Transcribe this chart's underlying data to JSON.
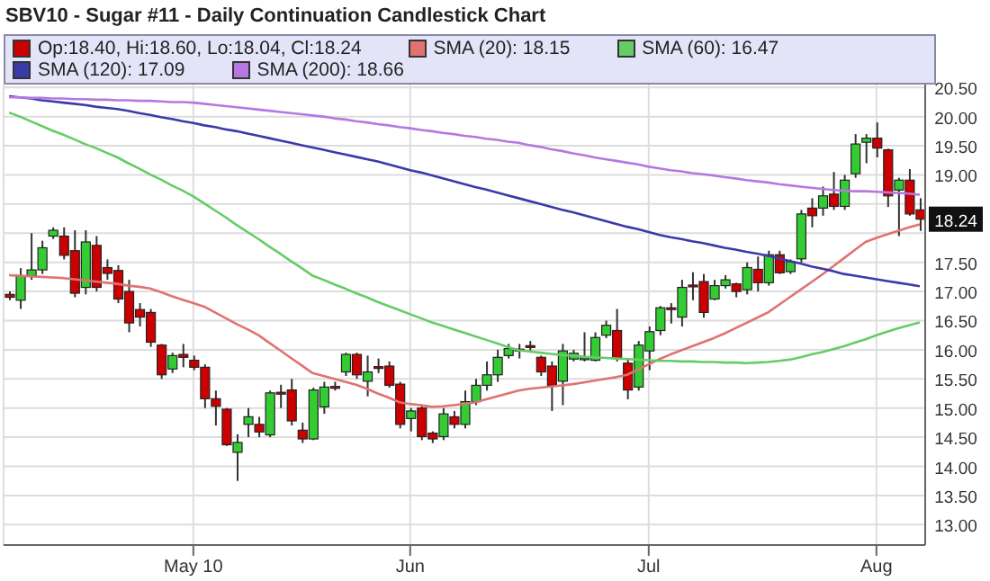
{
  "chart_data": {
    "type": "candlestick",
    "title": "SBV10 - Sugar #11 - Daily Continuation Candlestick Chart",
    "categories": [
      null,
      null,
      null,
      null,
      null,
      null,
      null,
      null,
      null,
      null,
      null,
      null,
      null,
      null,
      null,
      null,
      null,
      "May 10",
      null,
      null,
      null,
      null,
      null,
      null,
      null,
      null,
      null,
      null,
      null,
      null,
      null,
      null,
      null,
      null,
      null,
      null,
      null,
      "Jun",
      null,
      null,
      null,
      null,
      null,
      null,
      null,
      null,
      null,
      null,
      null,
      null,
      null,
      null,
      null,
      null,
      null,
      null,
      null,
      null,
      null,
      "Jul",
      null,
      null,
      null,
      null,
      null,
      null,
      null,
      null,
      null,
      null,
      null,
      null,
      null,
      null,
      null,
      null,
      null,
      null,
      null,
      null,
      "Aug",
      null,
      null,
      null,
      null
    ],
    "ylim": [
      12.65,
      20.55
    ],
    "yticks": [
      {
        "value": 13,
        "label": "13.00"
      },
      {
        "value": 13.5,
        "label": "13.50"
      },
      {
        "value": 14,
        "label": "14.00"
      },
      {
        "value": 14.5,
        "label": "14.50"
      },
      {
        "value": 15,
        "label": "15.00"
      },
      {
        "value": 15.5,
        "label": "15.50"
      },
      {
        "value": 16,
        "label": "16.00"
      },
      {
        "value": 16.5,
        "label": "16.50"
      },
      {
        "value": 17,
        "label": "17.00"
      },
      {
        "value": 17.5,
        "label": "17.50"
      },
      {
        "value": 18,
        "label": null
      },
      {
        "value": 18.5,
        "label": null
      },
      {
        "value": 19,
        "label": "19.00"
      },
      {
        "value": 19.5,
        "label": "19.50"
      },
      {
        "value": 20,
        "label": "20.00"
      },
      {
        "value": 20.5,
        "label": "20.50"
      }
    ],
    "grid": true,
    "legend": "top",
    "annotations": [
      "18.24"
    ],
    "series": [
      {
        "name": "Op:18.40, Hi:18.60, Lo:18.04, Cl:18.24",
        "color": "#cc0000",
        "ohlc": [
          [
            16.95,
            17.0,
            16.85,
            16.9
          ],
          [
            16.85,
            17.4,
            16.7,
            17.27
          ],
          [
            17.27,
            18.0,
            17.2,
            17.37
          ],
          [
            17.37,
            17.87,
            17.3,
            17.75
          ],
          [
            17.95,
            18.1,
            17.9,
            18.05
          ],
          [
            17.95,
            18.1,
            17.55,
            17.62
          ],
          [
            17.7,
            18.05,
            16.9,
            16.97
          ],
          [
            17.07,
            18.05,
            16.95,
            17.85
          ],
          [
            17.79,
            17.95,
            17.0,
            17.07
          ],
          [
            17.41,
            17.55,
            17.2,
            17.31
          ],
          [
            17.36,
            17.45,
            16.8,
            16.87
          ],
          [
            17.0,
            17.2,
            16.3,
            16.46
          ],
          [
            16.69,
            16.8,
            16.4,
            16.56
          ],
          [
            16.64,
            16.7,
            16.05,
            16.13
          ],
          [
            16.08,
            16.1,
            15.5,
            15.57
          ],
          [
            15.67,
            15.95,
            15.6,
            15.9
          ],
          [
            15.92,
            16.1,
            15.7,
            15.87
          ],
          [
            15.82,
            15.9,
            15.65,
            15.7
          ],
          [
            15.7,
            15.75,
            15.0,
            15.16
          ],
          [
            15.16,
            15.3,
            14.7,
            15.03
          ],
          [
            14.98,
            15.0,
            14.35,
            14.37
          ],
          [
            14.24,
            14.55,
            13.75,
            14.41
          ],
          [
            14.72,
            15.0,
            14.5,
            14.85
          ],
          [
            14.72,
            14.85,
            14.5,
            14.59
          ],
          [
            14.54,
            15.3,
            14.5,
            15.26
          ],
          [
            15.27,
            15.4,
            15.0,
            15.24
          ],
          [
            15.31,
            15.5,
            14.7,
            14.78
          ],
          [
            14.62,
            14.75,
            14.4,
            14.47
          ],
          [
            14.47,
            15.35,
            14.45,
            15.31
          ],
          [
            15.02,
            15.45,
            14.9,
            15.36
          ],
          [
            15.37,
            15.45,
            15.3,
            15.35
          ],
          [
            15.62,
            15.95,
            15.55,
            15.92
          ],
          [
            15.92,
            15.95,
            15.5,
            15.57
          ],
          [
            15.46,
            15.9,
            15.2,
            15.62
          ],
          [
            15.71,
            15.85,
            15.6,
            15.7
          ],
          [
            15.72,
            15.8,
            15.35,
            15.39
          ],
          [
            15.41,
            15.45,
            14.65,
            14.72
          ],
          [
            14.82,
            15.0,
            14.6,
            14.95
          ],
          [
            15.0,
            15.05,
            14.45,
            14.51
          ],
          [
            14.57,
            14.6,
            14.4,
            14.47
          ],
          [
            14.51,
            15.0,
            14.45,
            14.9
          ],
          [
            14.85,
            14.95,
            14.65,
            14.72
          ],
          [
            14.72,
            15.3,
            14.65,
            15.11
          ],
          [
            15.11,
            15.5,
            15.05,
            15.39
          ],
          [
            15.39,
            15.8,
            15.3,
            15.57
          ],
          [
            15.57,
            16.0,
            15.45,
            15.87
          ],
          [
            15.9,
            16.1,
            15.85,
            16.02
          ],
          [
            16.01,
            16.1,
            15.85,
            16.0
          ],
          [
            16.07,
            16.15,
            15.95,
            16.05
          ],
          [
            15.87,
            15.9,
            15.55,
            15.62
          ],
          [
            15.72,
            15.8,
            14.95,
            15.39
          ],
          [
            15.46,
            16.1,
            15.05,
            15.98
          ],
          [
            15.84,
            16.0,
            15.8,
            15.94
          ],
          [
            15.84,
            16.3,
            15.8,
            15.86
          ],
          [
            15.82,
            16.3,
            15.8,
            16.21
          ],
          [
            16.25,
            16.5,
            16.2,
            16.42
          ],
          [
            16.33,
            16.7,
            15.8,
            15.85
          ],
          [
            15.77,
            15.85,
            15.15,
            15.31
          ],
          [
            15.36,
            16.15,
            15.3,
            16.08
          ],
          [
            15.98,
            16.4,
            15.65,
            16.31
          ],
          [
            16.33,
            16.75,
            16.25,
            16.72
          ],
          [
            16.72,
            16.8,
            16.45,
            16.71
          ],
          [
            16.56,
            17.2,
            16.4,
            17.07
          ],
          [
            17.11,
            17.33,
            16.85,
            17.09
          ],
          [
            17.17,
            17.3,
            16.55,
            16.64
          ],
          [
            16.87,
            17.2,
            16.85,
            17.1
          ],
          [
            17.1,
            17.28,
            17.05,
            17.2
          ],
          [
            17.13,
            17.15,
            16.9,
            17.0
          ],
          [
            17.03,
            17.5,
            16.95,
            17.41
          ],
          [
            17.38,
            17.6,
            17.0,
            17.15
          ],
          [
            17.15,
            17.7,
            17.1,
            17.63
          ],
          [
            17.63,
            17.7,
            17.3,
            17.32
          ],
          [
            17.34,
            17.55,
            17.3,
            17.51
          ],
          [
            17.56,
            18.4,
            17.5,
            18.33
          ],
          [
            18.43,
            18.6,
            18.1,
            18.3
          ],
          [
            18.43,
            18.8,
            18.3,
            18.64
          ],
          [
            18.67,
            19.05,
            18.4,
            18.46
          ],
          [
            18.46,
            19.0,
            18.4,
            18.91
          ],
          [
            19.02,
            19.7,
            18.95,
            19.53
          ],
          [
            19.56,
            19.7,
            19.2,
            19.63
          ],
          [
            19.63,
            19.9,
            19.3,
            19.46
          ],
          [
            19.43,
            19.45,
            18.45,
            18.64
          ],
          [
            18.74,
            18.95,
            17.95,
            18.91
          ],
          [
            18.91,
            19.1,
            18.3,
            18.33
          ],
          [
            18.4,
            18.6,
            18.04,
            18.24
          ]
        ],
        "colors": [
          "#cc0000",
          "#33cc33",
          "#33cc33",
          "#33cc33",
          "#33cc33",
          "#cc0000",
          "#cc0000",
          "#33cc33",
          "#cc0000",
          "#cc0000",
          "#cc0000",
          "#cc0000",
          "#cc0000",
          "#cc0000",
          "#cc0000",
          "#33cc33",
          "#cc0000",
          "#cc0000",
          "#cc0000",
          "#cc0000",
          "#cc0000",
          "#33cc33",
          "#33cc33",
          "#cc0000",
          "#33cc33",
          "#cc0000",
          "#cc0000",
          "#cc0000",
          "#33cc33",
          "#33cc33",
          "#cc0000",
          "#33cc33",
          "#cc0000",
          "#33cc33",
          "#cc0000",
          "#cc0000",
          "#cc0000",
          "#33cc33",
          "#cc0000",
          "#cc0000",
          "#33cc33",
          "#cc0000",
          "#33cc33",
          "#33cc33",
          "#33cc33",
          "#33cc33",
          "#33cc33",
          "#cc0000",
          "#cc0000",
          "#cc0000",
          "#cc0000",
          "#33cc33",
          "#33cc33",
          "#33cc33",
          "#33cc33",
          "#33cc33",
          "#cc0000",
          "#cc0000",
          "#33cc33",
          "#33cc33",
          "#33cc33",
          "#cc0000",
          "#33cc33",
          "#cc0000",
          "#cc0000",
          "#33cc33",
          "#33cc33",
          "#cc0000",
          "#33cc33",
          "#cc0000",
          "#33cc33",
          "#cc0000",
          "#33cc33",
          "#33cc33",
          "#cc0000",
          "#33cc33",
          "#cc0000",
          "#33cc33",
          "#33cc33",
          "#33cc33",
          "#cc0000",
          "#cc0000",
          "#33cc33",
          "#cc0000",
          "#cc0000"
        ]
      },
      {
        "type": "line",
        "name": "SMA (20): 18.15",
        "color": "#e07272",
        "values": [
          17.28,
          17.27,
          17.26,
          17.25,
          17.24,
          17.23,
          17.21,
          17.19,
          17.17,
          17.15,
          17.13,
          17.1,
          17.08,
          17.05,
          16.99,
          16.92,
          16.86,
          16.8,
          16.74,
          16.64,
          16.54,
          16.44,
          16.35,
          16.25,
          16.12,
          15.99,
          15.86,
          15.73,
          15.6,
          15.55,
          15.5,
          15.45,
          15.4,
          15.33,
          15.25,
          15.18,
          15.1,
          15.07,
          15.05,
          15.02,
          15.03,
          15.05,
          15.07,
          15.1,
          15.15,
          15.2,
          15.25,
          15.3,
          15.33,
          15.35,
          15.37,
          15.39,
          15.41,
          15.44,
          15.47,
          15.5,
          15.53,
          15.57,
          15.66,
          15.75,
          15.84,
          15.92,
          15.99,
          16.06,
          16.13,
          16.2,
          16.28,
          16.37,
          16.46,
          16.55,
          16.64,
          16.77,
          16.9,
          17.03,
          17.16,
          17.29,
          17.43,
          17.57,
          17.71,
          17.85,
          17.92,
          17.98,
          18.04,
          18.1,
          18.15
        ]
      },
      {
        "type": "line",
        "name": "SMA (60): 16.47",
        "color": "#66cc66",
        "values": [
          20.07,
          20.0,
          19.92,
          19.84,
          19.76,
          19.69,
          19.61,
          19.53,
          19.46,
          19.38,
          19.3,
          19.2,
          19.11,
          19.01,
          18.92,
          18.82,
          18.73,
          18.63,
          18.51,
          18.39,
          18.27,
          18.14,
          18.02,
          17.9,
          17.77,
          17.65,
          17.52,
          17.4,
          17.27,
          17.2,
          17.12,
          17.05,
          16.97,
          16.9,
          16.82,
          16.75,
          16.68,
          16.61,
          16.54,
          16.47,
          16.41,
          16.35,
          16.29,
          16.23,
          16.17,
          16.11,
          16.05,
          15.99,
          15.97,
          15.95,
          15.93,
          15.91,
          15.9,
          15.88,
          15.87,
          15.86,
          15.85,
          15.84,
          15.83,
          15.82,
          15.81,
          15.81,
          15.8,
          15.8,
          15.79,
          15.79,
          15.78,
          15.78,
          15.77,
          15.78,
          15.79,
          15.81,
          15.83,
          15.87,
          15.92,
          15.96,
          16.01,
          16.06,
          16.12,
          16.18,
          16.25,
          16.31,
          16.37,
          16.42,
          16.47
        ]
      },
      {
        "type": "line",
        "name": "SMA (120): 17.09",
        "color": "#3a3aa8",
        "values": [
          20.35,
          20.33,
          20.31,
          20.28,
          20.26,
          20.24,
          20.22,
          20.2,
          20.17,
          20.15,
          20.13,
          20.1,
          20.06,
          20.03,
          19.99,
          19.96,
          19.92,
          19.89,
          19.85,
          19.82,
          19.78,
          19.75,
          19.71,
          19.67,
          19.63,
          19.59,
          19.55,
          19.51,
          19.47,
          19.43,
          19.39,
          19.35,
          19.31,
          19.27,
          19.23,
          19.18,
          19.13,
          19.08,
          19.04,
          18.99,
          18.94,
          18.89,
          18.84,
          18.79,
          18.75,
          18.7,
          18.65,
          18.6,
          18.55,
          18.5,
          18.45,
          18.4,
          18.36,
          18.31,
          18.26,
          18.21,
          18.16,
          18.11,
          18.07,
          18.02,
          17.97,
          17.93,
          17.9,
          17.86,
          17.83,
          17.79,
          17.75,
          17.72,
          17.68,
          17.65,
          17.61,
          17.57,
          17.52,
          17.48,
          17.43,
          17.39,
          17.35,
          17.3,
          17.27,
          17.24,
          17.21,
          17.18,
          17.15,
          17.12,
          17.09
        ]
      },
      {
        "type": "line",
        "name": "SMA (200): 18.66",
        "color": "#b678e0",
        "values": [
          20.33,
          20.33,
          20.32,
          20.32,
          20.31,
          20.31,
          20.3,
          20.3,
          20.29,
          20.29,
          20.28,
          20.28,
          20.27,
          20.27,
          20.26,
          20.25,
          20.25,
          20.24,
          20.22,
          20.2,
          20.18,
          20.16,
          20.14,
          20.12,
          20.1,
          20.08,
          20.06,
          20.04,
          20.02,
          20.0,
          19.97,
          19.95,
          19.92,
          19.9,
          19.87,
          19.85,
          19.82,
          19.8,
          19.77,
          19.75,
          19.72,
          19.7,
          19.67,
          19.65,
          19.62,
          19.6,
          19.57,
          19.55,
          19.51,
          19.48,
          19.44,
          19.41,
          19.37,
          19.34,
          19.3,
          19.27,
          19.24,
          19.21,
          19.18,
          19.14,
          19.11,
          19.08,
          19.06,
          19.03,
          19.01,
          18.99,
          18.96,
          18.94,
          18.91,
          18.89,
          18.87,
          18.84,
          18.82,
          18.8,
          18.78,
          18.76,
          18.74,
          18.73,
          18.72,
          18.72,
          18.71,
          18.7,
          18.69,
          18.68,
          18.66
        ]
      }
    ]
  }
}
